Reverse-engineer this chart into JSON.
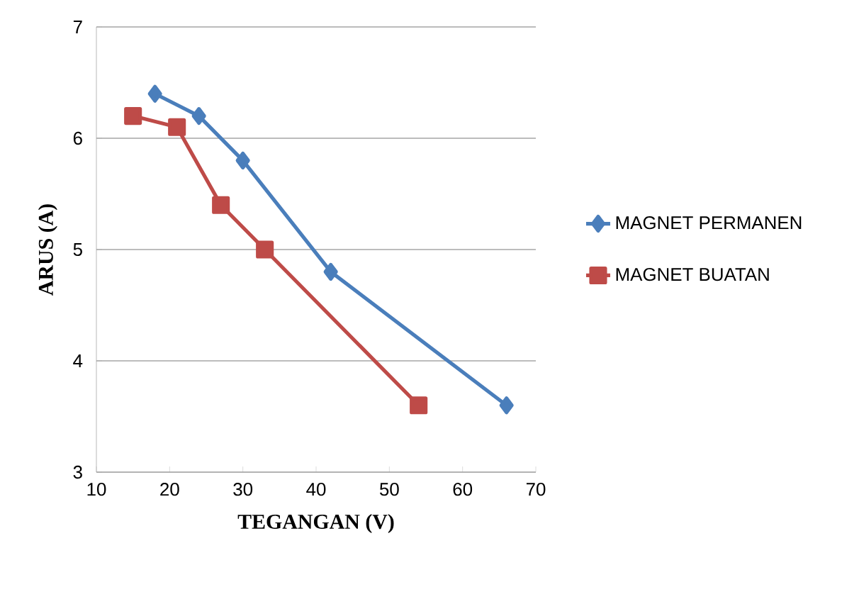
{
  "chart_data": {
    "type": "line",
    "xlabel": "TEGANGAN (V)",
    "ylabel": "ARUS (A)",
    "xlim": [
      10,
      70
    ],
    "xticks": [
      10,
      20,
      30,
      40,
      50,
      60,
      70
    ],
    "ylim": [
      3,
      7
    ],
    "yticks": [
      3,
      4,
      5,
      6,
      7
    ],
    "grid": "y",
    "legend": "right",
    "series": [
      {
        "name": "MAGNET PERMANEN",
        "color": "#4a7ebb",
        "marker": "diamond",
        "x": [
          18,
          24,
          30,
          42,
          66
        ],
        "values": [
          6.4,
          6.2,
          5.8,
          4.8,
          3.6
        ]
      },
      {
        "name": "MAGNET BUATAN",
        "color": "#be4b48",
        "marker": "square",
        "x": [
          15,
          21,
          27,
          33,
          54
        ],
        "values": [
          6.2,
          6.1,
          5.4,
          5.0,
          3.6
        ]
      }
    ]
  }
}
